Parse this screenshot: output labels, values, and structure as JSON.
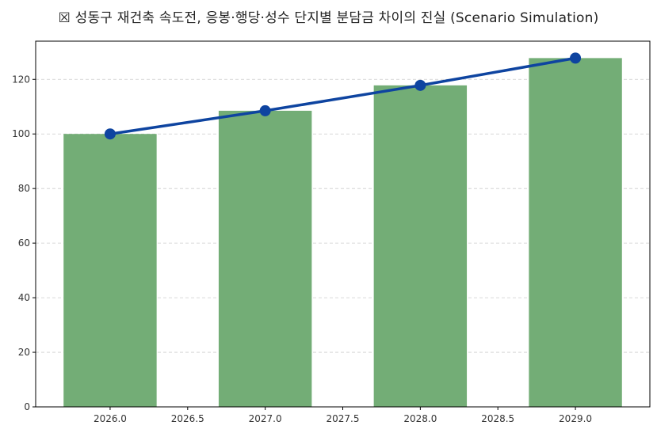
{
  "chart_data": {
    "type": "bar",
    "title": "☒ 성동구 재건축 속도전, 응봉·행당·성수 단지별 분담금 차이의 진실 (Scenario Simulation)",
    "xlabel": "",
    "ylabel": "",
    "xlim": [
      2025.52,
      2029.48
    ],
    "ylim": [
      0,
      134
    ],
    "x_ticks": [
      2026.0,
      2026.5,
      2027.0,
      2027.5,
      2028.0,
      2028.5,
      2029.0
    ],
    "x_tick_labels": [
      "2026.0",
      "2026.5",
      "2027.0",
      "2027.5",
      "2028.0",
      "2028.5",
      "2029.0"
    ],
    "y_ticks": [
      0,
      20,
      40,
      60,
      80,
      100,
      120
    ],
    "y_tick_labels": [
      "0",
      "20",
      "40",
      "60",
      "80",
      "100",
      "120"
    ],
    "grid": "y-dashed",
    "bar_width": 0.6,
    "x": [
      2026,
      2027,
      2028,
      2029
    ],
    "series": [
      {
        "type": "bar",
        "values": [
          100.0,
          108.5,
          117.8,
          127.8
        ],
        "color": "#73ad76"
      },
      {
        "type": "line",
        "values": [
          100.0,
          108.5,
          117.8,
          127.8
        ],
        "color": "#0e44a0",
        "marker": "circle"
      }
    ]
  }
}
